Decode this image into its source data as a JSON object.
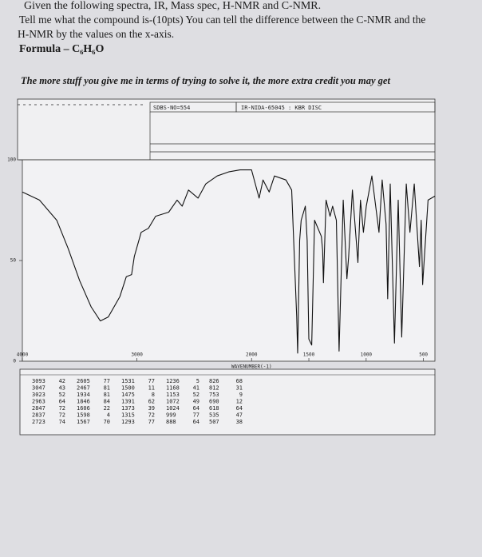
{
  "header": {
    "line1": "Given the following spectra, IR, Mass spec, H-NMR and C-NMR.",
    "line2": "Tell me what the compound is-(10pts) You can tell the difference between the C-NMR and the",
    "line3": "H-NMR by the values on the x-axis.",
    "formula": "Formula – C₆H₆O",
    "note": "The more stuff you give me in terms of trying to solve it, the more extra credit you may get"
  },
  "form": {
    "sdbs_no": "SDBS-NO=554",
    "code": "IR-NIDA-65045 : KBR DISC"
  },
  "chart_data": {
    "type": "line",
    "x_label": "WAVENUMBER(-1)",
    "color": "#111111",
    "xlim": [
      4000,
      400
    ],
    "ylim": [
      0,
      100
    ],
    "xticks": [
      4000,
      3000,
      2000,
      1500,
      1000,
      500
    ],
    "yticks": [
      0,
      50,
      100
    ],
    "x": [
      4000,
      3850,
      3700,
      3600,
      3500,
      3400,
      3320,
      3250,
      3150,
      3093,
      3047,
      3023,
      2963,
      2900,
      2837,
      2723,
      2650,
      2605,
      2550,
      2467,
      2400,
      2300,
      2200,
      2100,
      2000,
      1934,
      1900,
      1846,
      1800,
      1700,
      1650,
      1606,
      1598,
      1580,
      1567,
      1531,
      1515,
      1500,
      1475,
      1450,
      1391,
      1380,
      1373,
      1350,
      1315,
      1293,
      1260,
      1236,
      1200,
      1168,
      1153,
      1120,
      1072,
      1050,
      1024,
      999,
      950,
      888,
      860,
      826,
      812,
      790,
      753,
      720,
      690,
      650,
      618,
      580,
      535,
      520,
      507,
      460,
      400
    ],
    "values": [
      84,
      80,
      70,
      56,
      40,
      27,
      20,
      22,
      32,
      42,
      43,
      52,
      64,
      66,
      72,
      74,
      80,
      77,
      85,
      81,
      88,
      92,
      94,
      95,
      95,
      81,
      90,
      84,
      92,
      90,
      85,
      22,
      4,
      60,
      70,
      77,
      60,
      11,
      8,
      70,
      62,
      55,
      39,
      80,
      72,
      77,
      70,
      5,
      80,
      41,
      52,
      85,
      49,
      80,
      64,
      77,
      92,
      64,
      90,
      68,
      31,
      88,
      9,
      80,
      12,
      88,
      64,
      88,
      47,
      70,
      38,
      80,
      82
    ]
  },
  "peak_table": {
    "columns": [
      [
        [
          3093,
          42
        ],
        [
          3047,
          43
        ],
        [
          3023,
          52
        ],
        [
          2963,
          64
        ],
        [
          2847,
          72
        ],
        [
          2837,
          72
        ],
        [
          2723,
          74
        ]
      ],
      [
        [
          2605,
          77
        ],
        [
          2467,
          81
        ],
        [
          1934,
          81
        ],
        [
          1846,
          84
        ],
        [
          1606,
          22
        ],
        [
          1598,
          4
        ],
        [
          1567,
          70
        ]
      ],
      [
        [
          1531,
          77
        ],
        [
          1500,
          11
        ],
        [
          1475,
          8
        ],
        [
          1391,
          62
        ],
        [
          1373,
          39
        ],
        [
          1315,
          72
        ],
        [
          1293,
          77
        ]
      ],
      [
        [
          1236,
          5
        ],
        [
          1168,
          41
        ],
        [
          1153,
          52
        ],
        [
          1072,
          49
        ],
        [
          1024,
          64
        ],
        [
          999,
          77
        ],
        [
          888,
          64
        ]
      ],
      [
        [
          826,
          68
        ],
        [
          812,
          31
        ],
        [
          753,
          9
        ],
        [
          690,
          12
        ],
        [
          618,
          64
        ],
        [
          535,
          47
        ],
        [
          507,
          38
        ]
      ]
    ]
  }
}
